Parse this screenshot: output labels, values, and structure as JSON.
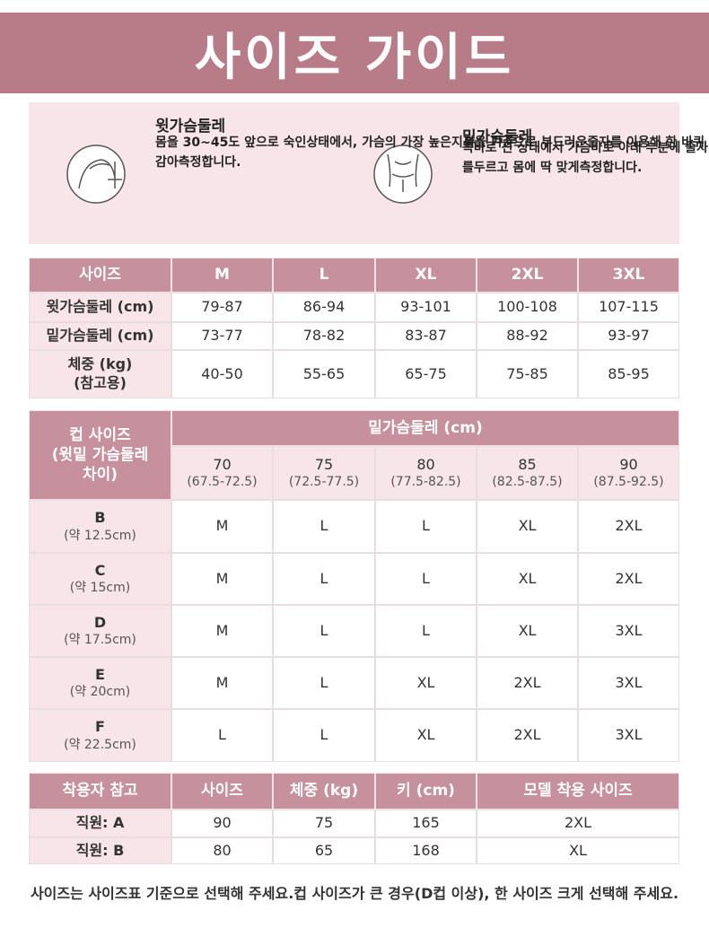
{
  "header": {
    "title": "사이즈 가이드"
  },
  "guide": [
    {
      "title": "윗가슴둘레",
      "lines": [
        "몸을 30~45도 앞으로 숙인",
        "상태에서, 가슴의 가장 높은",
        "지점을 기준으로 부드러운",
        "줄자를 이용해 한 바퀴 감아",
        "측정합니다."
      ]
    },
    {
      "title": "밑가슴둘레",
      "lines": [
        "똑바로 선 상태에서 가슴",
        "바로 아래 부분에 줄자를",
        "두르고 몸에 딱 맞게",
        "측정합니다."
      ]
    }
  ],
  "size_table": {
    "header": [
      "사이즈",
      "M",
      "L",
      "XL",
      "2XL",
      "3XL"
    ],
    "rows": [
      {
        "label": [
          "윗가슴둘레 (cm)"
        ],
        "values": [
          "79-87",
          "86-94",
          "93-101",
          "100-108",
          "107-115"
        ]
      },
      {
        "label": [
          "밑가슴둘레 (cm)"
        ],
        "values": [
          "73-77",
          "78-82",
          "83-87",
          "88-92",
          "93-97"
        ]
      },
      {
        "label": [
          "체중 (kg)",
          "(참고용)"
        ],
        "values": [
          "40-50",
          "55-65",
          "65-75",
          "75-85",
          "85-95"
        ]
      }
    ]
  },
  "cup_table": {
    "corner": [
      "컵 사이즈",
      "(윗밑 가슴둘레",
      "차이)"
    ],
    "group": "밑가슴둘레 (cm)",
    "bands": [
      {
        "size": "70",
        "range": "(67.5-72.5)"
      },
      {
        "size": "75",
        "range": "(72.5-77.5)"
      },
      {
        "size": "80",
        "range": "(77.5-82.5)"
      },
      {
        "size": "85",
        "range": "(82.5-87.5)"
      },
      {
        "size": "90",
        "range": "(87.5-92.5)"
      }
    ],
    "rows": [
      {
        "cup": "B",
        "diff": "(약 12.5cm)",
        "sizes": [
          "M",
          "L",
          "L",
          "XL",
          "2XL"
        ]
      },
      {
        "cup": "C",
        "diff": "(약 15cm)",
        "sizes": [
          "M",
          "L",
          "L",
          "XL",
          "2XL"
        ]
      },
      {
        "cup": "D",
        "diff": "(약 17.5cm)",
        "sizes": [
          "M",
          "L",
          "L",
          "XL",
          "3XL"
        ]
      },
      {
        "cup": "E",
        "diff": "(약 20cm)",
        "sizes": [
          "M",
          "L",
          "XL",
          "2XL",
          "3XL"
        ]
      },
      {
        "cup": "F",
        "diff": "(약 22.5cm)",
        "sizes": [
          "L",
          "L",
          "XL",
          "2XL",
          "3XL"
        ]
      }
    ]
  },
  "wearer_table": {
    "header": [
      "착용자 참고",
      "사이즈",
      "체중 (kg)",
      "키 (cm)",
      "모델 착용 사이즈"
    ],
    "rows": [
      [
        "직원: A",
        "90",
        "75",
        "165",
        "2XL"
      ],
      [
        "직원: B",
        "80",
        "65",
        "168",
        "XL"
      ]
    ]
  },
  "footer": [
    "사이즈는 사이즈표 기준으로 선택해 주세요.",
    "컵 사이즈가 큰 경우(D컵 이상), 한 사이즈 크게 선택해 주세요."
  ]
}
